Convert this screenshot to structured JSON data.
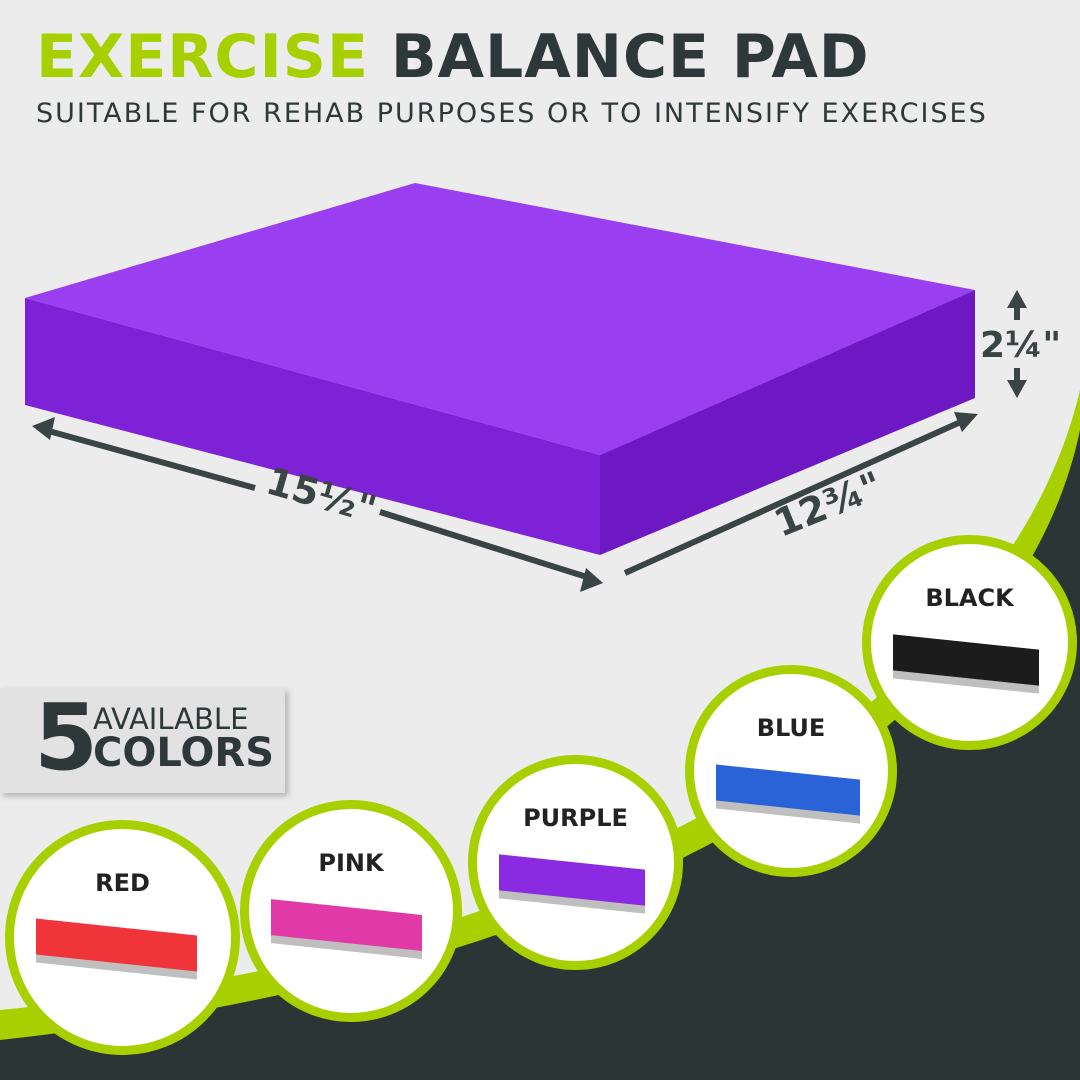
{
  "header": {
    "title_accent": "EXERCISE",
    "title_main": "BALANCE PAD",
    "subtitle": "SUITABLE FOR REHAB PURPOSES OR TO INTENSIFY EXERCISES"
  },
  "dimensions": {
    "length": "15½\"",
    "width": "12¾\"",
    "height": "2¼\""
  },
  "badge": {
    "number": "5",
    "line1": "AVAILABLE",
    "line2": "COLORS"
  },
  "colors": [
    {
      "label": "RED",
      "hex": "#f0353a"
    },
    {
      "label": "PINK",
      "hex": "#e13aa8"
    },
    {
      "label": "PURPLE",
      "hex": "#8a2be2"
    },
    {
      "label": "BLUE",
      "hex": "#2a63d8"
    },
    {
      "label": "BLACK",
      "hex": "#1c1c1c"
    }
  ],
  "theme": {
    "accent": "#a8d000",
    "dark": "#2b3535",
    "background": "#ececec"
  }
}
